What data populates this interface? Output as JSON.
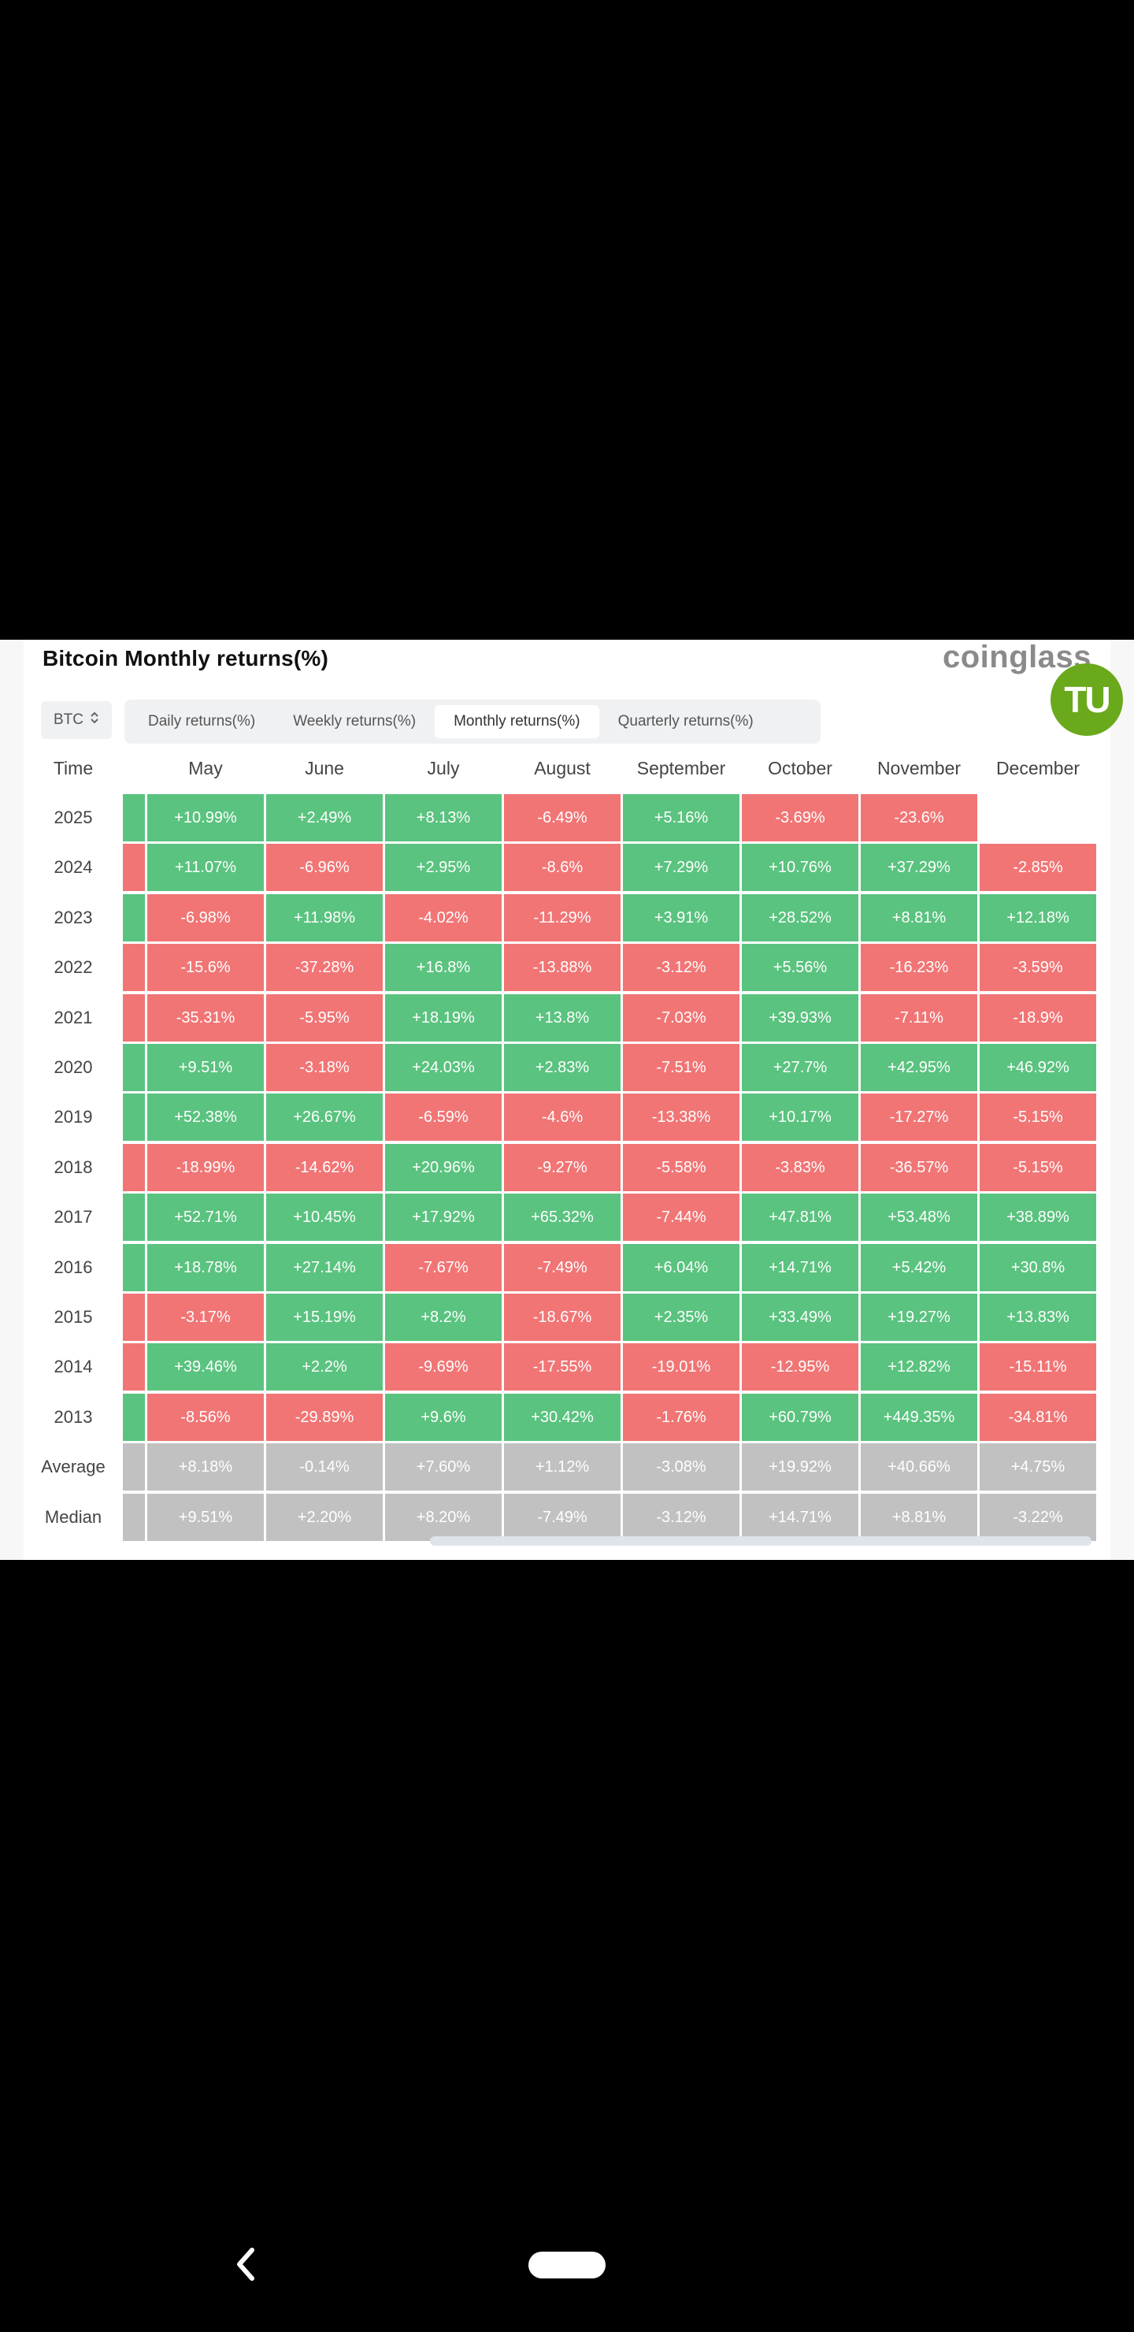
{
  "title": "Bitcoin Monthly returns(%)",
  "logo_text": "coinglass",
  "badge_text": "TU",
  "asset_select": {
    "value": "BTC",
    "icon": "chevron-updown-icon"
  },
  "tabs": [
    {
      "label": "Daily returns(%)",
      "active": false
    },
    {
      "label": "Weekly returns(%)",
      "active": false
    },
    {
      "label": "Monthly returns(%)",
      "active": true
    },
    {
      "label": "Quarterly returns(%)",
      "active": false
    }
  ],
  "table": {
    "time_header": "Time",
    "months": [
      "May",
      "June",
      "July",
      "August",
      "September",
      "October",
      "November",
      "December"
    ],
    "rows": [
      {
        "label": "2025",
        "lead": "pos",
        "values": [
          "+10.99%",
          "+2.49%",
          "+8.13%",
          "-6.49%",
          "+5.16%",
          "-3.69%",
          "-23.6%",
          ""
        ]
      },
      {
        "label": "2024",
        "lead": "neg",
        "values": [
          "+11.07%",
          "-6.96%",
          "+2.95%",
          "-8.6%",
          "+7.29%",
          "+10.76%",
          "+37.29%",
          "-2.85%"
        ]
      },
      {
        "label": "2023",
        "lead": "pos",
        "values": [
          "-6.98%",
          "+11.98%",
          "-4.02%",
          "-11.29%",
          "+3.91%",
          "+28.52%",
          "+8.81%",
          "+12.18%"
        ]
      },
      {
        "label": "2022",
        "lead": "neg",
        "values": [
          "-15.6%",
          "-37.28%",
          "+16.8%",
          "-13.88%",
          "-3.12%",
          "+5.56%",
          "-16.23%",
          "-3.59%"
        ]
      },
      {
        "label": "2021",
        "lead": "neg",
        "values": [
          "-35.31%",
          "-5.95%",
          "+18.19%",
          "+13.8%",
          "-7.03%",
          "+39.93%",
          "-7.11%",
          "-18.9%"
        ]
      },
      {
        "label": "2020",
        "lead": "pos",
        "values": [
          "+9.51%",
          "-3.18%",
          "+24.03%",
          "+2.83%",
          "-7.51%",
          "+27.7%",
          "+42.95%",
          "+46.92%"
        ]
      },
      {
        "label": "2019",
        "lead": "pos",
        "values": [
          "+52.38%",
          "+26.67%",
          "-6.59%",
          "-4.6%",
          "-13.38%",
          "+10.17%",
          "-17.27%",
          "-5.15%"
        ]
      },
      {
        "label": "2018",
        "lead": "neg",
        "values": [
          "-18.99%",
          "-14.62%",
          "+20.96%",
          "-9.27%",
          "-5.58%",
          "-3.83%",
          "-36.57%",
          "-5.15%"
        ]
      },
      {
        "label": "2017",
        "lead": "pos",
        "values": [
          "+52.71%",
          "+10.45%",
          "+17.92%",
          "+65.32%",
          "-7.44%",
          "+47.81%",
          "+53.48%",
          "+38.89%"
        ]
      },
      {
        "label": "2016",
        "lead": "pos",
        "values": [
          "+18.78%",
          "+27.14%",
          "-7.67%",
          "-7.49%",
          "+6.04%",
          "+14.71%",
          "+5.42%",
          "+30.8%"
        ]
      },
      {
        "label": "2015",
        "lead": "neg",
        "values": [
          "-3.17%",
          "+15.19%",
          "+8.2%",
          "-18.67%",
          "+2.35%",
          "+33.49%",
          "+19.27%",
          "+13.83%"
        ]
      },
      {
        "label": "2014",
        "lead": "neg",
        "values": [
          "+39.46%",
          "+2.2%",
          "-9.69%",
          "-17.55%",
          "-19.01%",
          "-12.95%",
          "+12.82%",
          "-15.11%"
        ]
      },
      {
        "label": "2013",
        "lead": "pos",
        "values": [
          "-8.56%",
          "-29.89%",
          "+9.6%",
          "+30.42%",
          "-1.76%",
          "+60.79%",
          "+449.35%",
          "-34.81%"
        ]
      }
    ],
    "summary_rows": [
      {
        "label": "Average",
        "values": [
          "+8.18%",
          "-0.14%",
          "+7.60%",
          "+1.12%",
          "-3.08%",
          "+19.92%",
          "+40.66%",
          "+4.75%"
        ]
      },
      {
        "label": "Median",
        "values": [
          "+9.51%",
          "+2.20%",
          "+8.20%",
          "-7.49%",
          "-3.12%",
          "+14.71%",
          "+8.81%",
          "-3.22%"
        ]
      }
    ]
  },
  "colors": {
    "positive": "#5ac37f",
    "negative": "#f17575",
    "summary": "#c1c1c1"
  },
  "navbar": {
    "back_icon": "back-chevron-icon",
    "home_icon": "home-pill-icon"
  }
}
